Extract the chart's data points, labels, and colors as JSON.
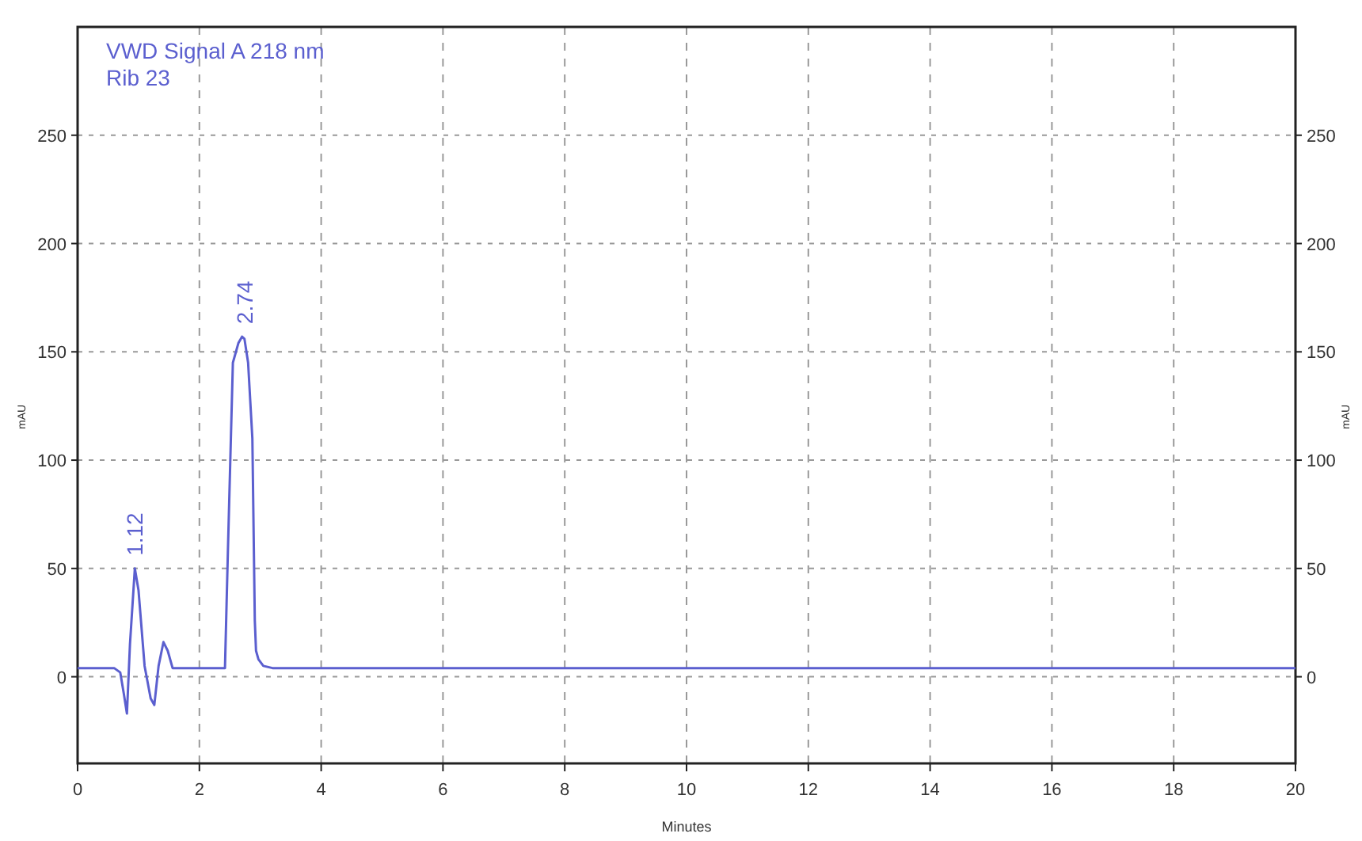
{
  "chart_data": {
    "type": "line",
    "title": "VWD Signal A 218 nm",
    "subtitle": "Rib 23",
    "xlabel": "Minutes",
    "ylabel": "mAU",
    "y2label": "mAU",
    "xlim": [
      0,
      20
    ],
    "xticks": [
      0,
      2,
      4,
      6,
      8,
      10,
      12,
      14,
      16,
      18,
      20
    ],
    "ylim": [
      -40,
      300
    ],
    "yticks": [
      0,
      50,
      100,
      150,
      200,
      250
    ],
    "y2lim": [
      -40,
      300
    ],
    "y2ticks": [
      0,
      50,
      100,
      150,
      200,
      250
    ],
    "grid": true,
    "marker": "none",
    "line_style": "solid",
    "annotations": [
      {
        "text": "1.12",
        "x": 0.94,
        "y": 50
      },
      {
        "text": "2.74",
        "x": 2.74,
        "y": 157
      }
    ],
    "series": [
      {
        "color": "#5b5fcf",
        "x": [
          0,
          0.6,
          0.7,
          0.76,
          0.81,
          0.86,
          0.94,
          1.0,
          1.1,
          1.2,
          1.26,
          1.33,
          1.41,
          1.48,
          1.56,
          1.62,
          2.0,
          2.42,
          2.47,
          2.55,
          2.64,
          2.7,
          2.74,
          2.8,
          2.87,
          2.91,
          2.93,
          2.97,
          3.05,
          3.2,
          3.5,
          4,
          6,
          8,
          10,
          12,
          14,
          16,
          18,
          20
        ],
        "values": [
          4,
          4,
          2,
          -8,
          -17,
          15,
          50,
          40,
          5,
          -10,
          -13,
          5,
          16,
          12,
          4,
          4,
          4,
          4,
          60,
          145,
          154,
          157,
          156,
          145,
          110,
          26,
          12,
          8,
          5,
          4,
          4,
          4,
          4,
          4,
          4,
          4,
          4,
          4,
          4,
          4
        ]
      }
    ]
  }
}
